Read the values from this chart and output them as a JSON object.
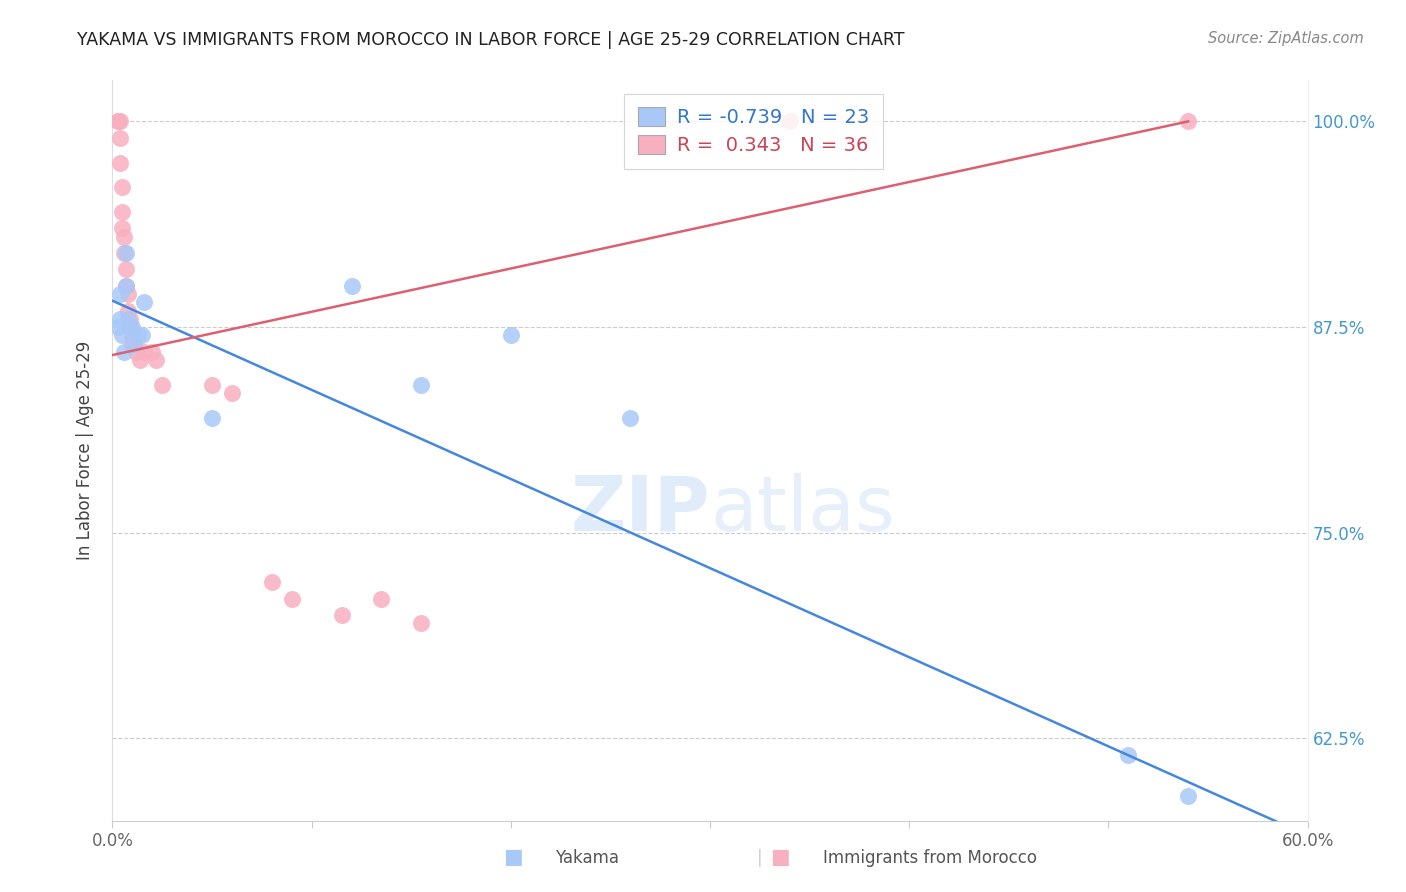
{
  "title": "YAKAMA VS IMMIGRANTS FROM MOROCCO IN LABOR FORCE | AGE 25-29 CORRELATION CHART",
  "source": "Source: ZipAtlas.com",
  "ylabel": "In Labor Force | Age 25-29",
  "xlim": [
    0.0,
    0.6
  ],
  "ylim": [
    0.575,
    1.025
  ],
  "ytick_positions": [
    0.625,
    0.75,
    0.875,
    1.0
  ],
  "ytick_labels": [
    "62.5%",
    "75.0%",
    "87.5%",
    "100.0%"
  ],
  "blue_R": "-0.739",
  "blue_N": "23",
  "pink_R": "0.343",
  "pink_N": "36",
  "blue_color": "#a8c8f8",
  "pink_color": "#f8b0c0",
  "blue_line_color": "#4488dd",
  "pink_line_color": "#dd6070",
  "legend_label_blue": "Yakama",
  "legend_label_pink": "Immigrants from Morocco",
  "watermark_zip": "ZIP",
  "watermark_atlas": "atlas",
  "blue_points_x": [
    0.003,
    0.004,
    0.004,
    0.005,
    0.006,
    0.007,
    0.007,
    0.008,
    0.009,
    0.01,
    0.011,
    0.013,
    0.015,
    0.016,
    0.05,
    0.12,
    0.155,
    0.2,
    0.26,
    0.51,
    0.54
  ],
  "blue_points_y": [
    0.875,
    0.895,
    0.88,
    0.87,
    0.86,
    0.92,
    0.9,
    0.88,
    0.875,
    0.875,
    0.865,
    0.87,
    0.87,
    0.89,
    0.82,
    0.9,
    0.84,
    0.87,
    0.82,
    0.615,
    0.59
  ],
  "pink_points_x": [
    0.003,
    0.003,
    0.004,
    0.004,
    0.004,
    0.005,
    0.005,
    0.005,
    0.006,
    0.006,
    0.007,
    0.007,
    0.008,
    0.008,
    0.009,
    0.009,
    0.01,
    0.01,
    0.011,
    0.012,
    0.014,
    0.016,
    0.02,
    0.022,
    0.025,
    0.05,
    0.06,
    0.08,
    0.09,
    0.115,
    0.135,
    0.155,
    0.34,
    0.54
  ],
  "pink_points_y": [
    1.0,
    1.0,
    1.0,
    0.99,
    0.975,
    0.96,
    0.945,
    0.935,
    0.93,
    0.92,
    0.91,
    0.9,
    0.895,
    0.885,
    0.88,
    0.875,
    0.87,
    0.865,
    0.865,
    0.86,
    0.855,
    0.86,
    0.86,
    0.855,
    0.84,
    0.84,
    0.835,
    0.72,
    0.71,
    0.7,
    0.71,
    0.695,
    1.0,
    1.0
  ],
  "blue_trend_x": [
    0.0,
    0.6
  ],
  "blue_trend_y": [
    0.891,
    0.566
  ],
  "pink_trend_x": [
    0.0,
    0.54
  ],
  "pink_trend_y": [
    0.858,
    1.0
  ]
}
